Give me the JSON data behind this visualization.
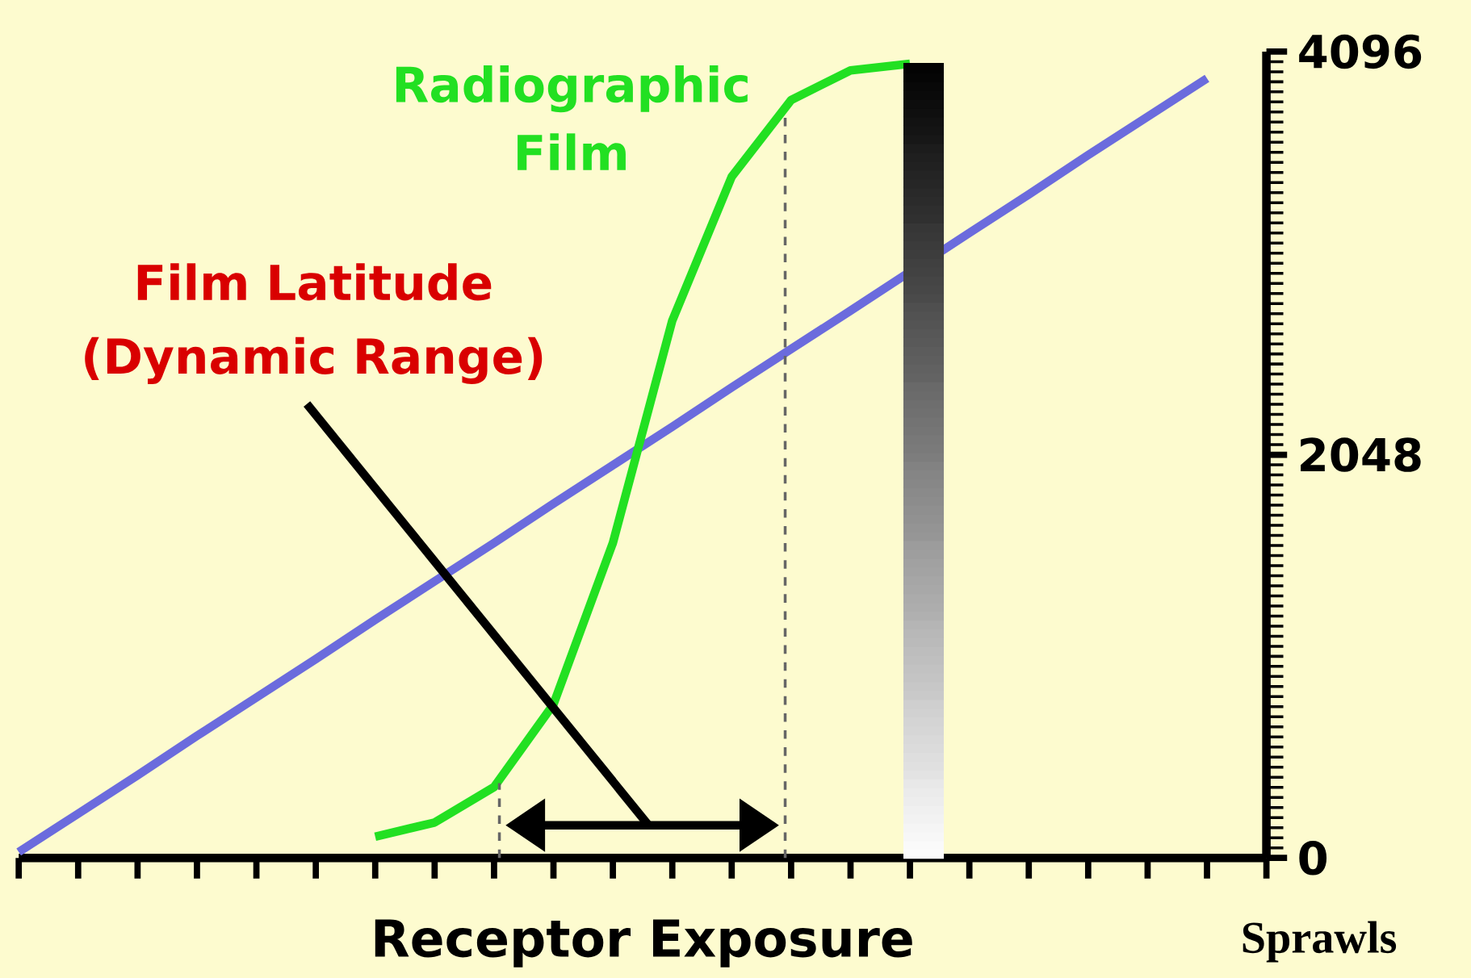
{
  "chart_data": {
    "type": "line",
    "xlabel": "Receptor Exposure",
    "ylim": [
      0,
      4096
    ],
    "yticks": [
      0,
      2048,
      4096
    ],
    "tick_labels": "y",
    "categories": [
      null,
      null,
      null,
      null,
      null,
      null,
      null,
      null,
      null,
      null,
      null,
      null,
      null,
      null,
      null,
      null,
      null,
      null,
      null,
      null,
      null,
      null
    ],
    "series": [
      {
        "color": "#6b6bdd",
        "values": [
          30,
          225,
          420,
          620,
          815,
          1010,
          1210,
          1405,
          1600,
          1800,
          1995,
          2190,
          2390,
          2585,
          2780,
          null,
          3175,
          3370,
          3570,
          3765,
          3960,
          null
        ]
      },
      {
        "name": "Radiographic Film",
        "color": "#22e022",
        "values": [
          null,
          null,
          null,
          null,
          null,
          null,
          108,
          180,
          360,
          780,
          1600,
          2730,
          3460,
          3850,
          4000,
          4034,
          null,
          null,
          null,
          null,
          null,
          null
        ]
      }
    ],
    "annotations": [
      "Film Latitude (Dynamic Range)",
      "Sprawls"
    ]
  }
}
